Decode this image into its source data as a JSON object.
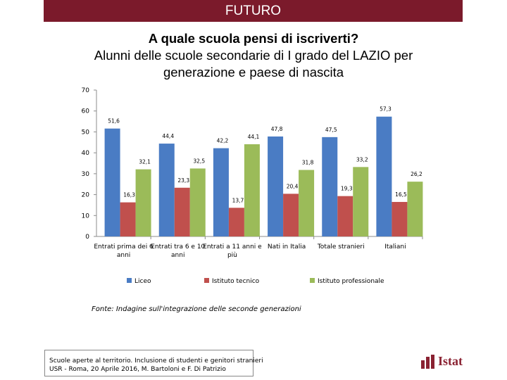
{
  "header": {
    "text": "FUTURO"
  },
  "title": {
    "line1": "A quale scuola pensi di iscriverti?",
    "line2": "Alunni delle scuole secondarie di I grado del LAZIO per generazione e paese di nascita"
  },
  "chart_data": {
    "type": "bar",
    "categories": [
      "Entrati prima dei 6 anni",
      "Entrati tra 6 e 10 anni",
      "Entrati a 11 anni e più",
      "Nati in Italia",
      "Totale stranieri",
      "Italiani"
    ],
    "series": [
      {
        "name": "Liceo",
        "color": "#4a7cc4",
        "values": [
          51.6,
          44.4,
          42.2,
          47.8,
          47.5,
          57.3
        ],
        "labels": [
          "51,6",
          "44,4",
          "42,2",
          "47,8",
          "47,5",
          "57,3"
        ]
      },
      {
        "name": "Istituto tecnico",
        "color": "#c0504d",
        "values": [
          16.3,
          23.3,
          13.7,
          20.4,
          19.3,
          16.5
        ],
        "labels": [
          "16,3",
          "23,3",
          "13,7",
          "20,4",
          "19,3",
          "16,5"
        ]
      },
      {
        "name": "Istituto professionale",
        "color": "#9bbb59",
        "values": [
          32.1,
          32.5,
          44.1,
          31.8,
          33.2,
          26.2
        ],
        "labels": [
          "32,1",
          "32,5",
          "44,1",
          "31,8",
          "33,2",
          "26,2"
        ]
      }
    ],
    "yticks": [
      "0",
      "10",
      "20",
      "30",
      "40",
      "50",
      "60",
      "70"
    ],
    "ylim": [
      0,
      70
    ],
    "grid": false,
    "legend": "bottom"
  },
  "source": "Fonte: Indagine sull'integrazione delle seconde generazioni",
  "footer": {
    "line1": "Scuole aperte al territorio. Inclusione di studenti e genitori stranieri",
    "line2": "USR - Roma, 20 Aprile 2016, M. Bartoloni e F. Di Patrizio"
  },
  "logo": {
    "text": "Istat",
    "color": "#8a2232"
  }
}
